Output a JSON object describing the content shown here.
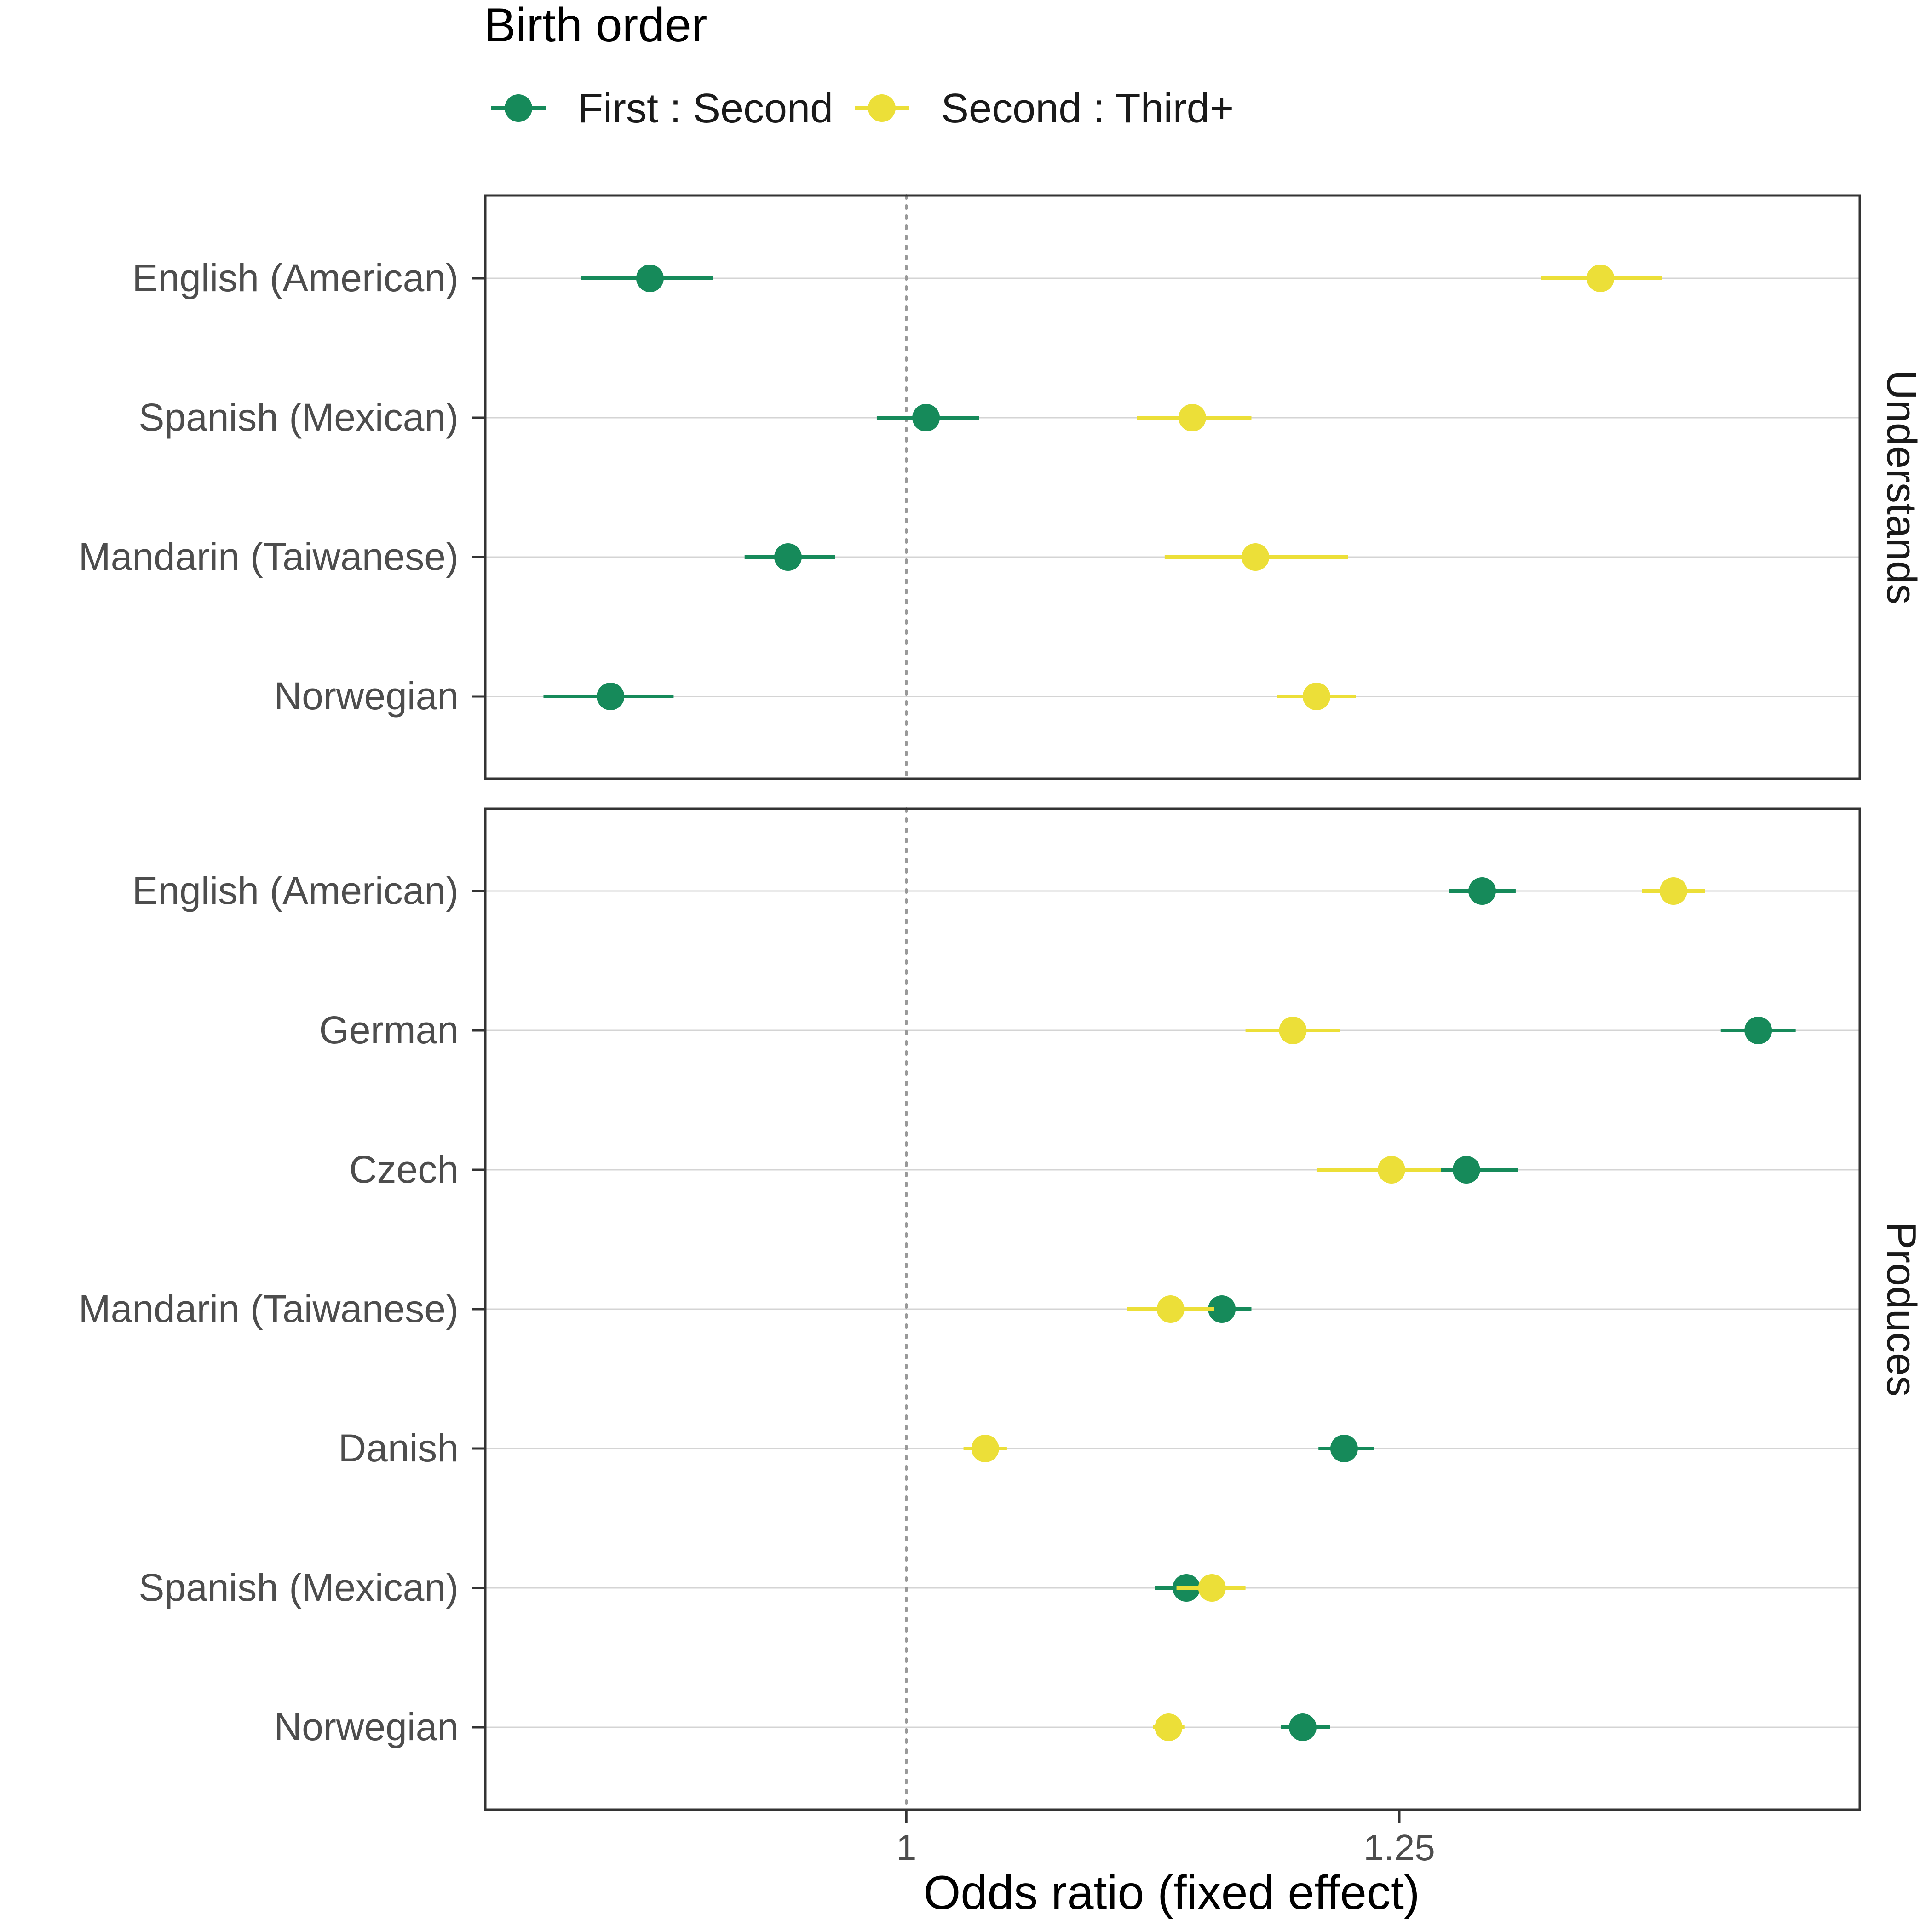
{
  "chart_data": {
    "type": "dot-interval",
    "xlabel": "Odds ratio (fixed effect)",
    "x_ticks": [
      1,
      1.25
    ],
    "x_tick_labels": [
      "1",
      "1.25"
    ],
    "xlim": [
      0.7865,
      1.4835
    ],
    "reference_line": 1,
    "grid": "horizontal major",
    "legend": {
      "title": "Birth order",
      "position": "top-left",
      "entries": [
        {
          "name": "First : Second",
          "color": "#168A5A"
        },
        {
          "name": "Second : Third+",
          "color": "#ECDF38"
        }
      ]
    },
    "panels": [
      {
        "label": "Understands",
        "categories": [
          "English (American)",
          "Spanish (Mexican)",
          "Mandarin (Taiwanese)",
          "Norwegian"
        ],
        "series": [
          {
            "name": "First : Second",
            "estimate": [
              0.87,
              1.01,
              0.94,
              0.85
            ],
            "lower": [
              0.835,
              0.985,
              0.918,
              0.816
            ],
            "upper": [
              0.902,
              1.037,
              0.964,
              0.882
            ]
          },
          {
            "name": "Second : Third+",
            "estimate": [
              1.352,
              1.145,
              1.177,
              1.208
            ],
            "lower": [
              1.322,
              1.117,
              1.131,
              1.188
            ],
            "upper": [
              1.383,
              1.175,
              1.224,
              1.228
            ]
          }
        ]
      },
      {
        "label": "Produces",
        "categories": [
          "English (American)",
          "German",
          "Czech",
          "Mandarin (Taiwanese)",
          "Danish",
          "Spanish (Mexican)",
          "Norwegian"
        ],
        "series": [
          {
            "name": "First : Second",
            "estimate": [
              1.292,
              1.432,
              1.284,
              1.16,
              1.222,
              1.142,
              1.201
            ],
            "lower": [
              1.275,
              1.413,
              1.263,
              1.147,
              1.209,
              1.126,
              1.19
            ],
            "upper": [
              1.309,
              1.451,
              1.31,
              1.175,
              1.237,
              1.158,
              1.215
            ]
          },
          {
            "name": "Second : Third+",
            "estimate": [
              1.389,
              1.196,
              1.246,
              1.134,
              1.04,
              1.155,
              1.133
            ],
            "lower": [
              1.373,
              1.172,
              1.208,
              1.112,
              1.029,
              1.137,
              1.125
            ],
            "upper": [
              1.405,
              1.22,
              1.271,
              1.156,
              1.051,
              1.172,
              1.141
            ]
          }
        ]
      }
    ]
  }
}
